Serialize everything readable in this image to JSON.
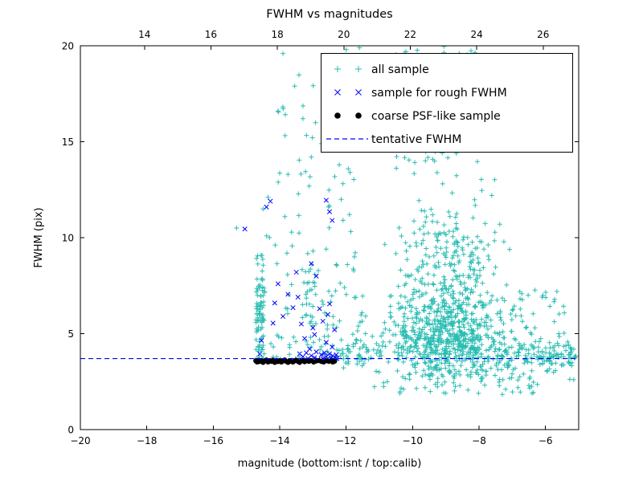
{
  "chart_data": {
    "type": "scatter",
    "title": "FWHM vs magnitudes",
    "xlabel": "magnitude (bottom:isnt / top:calib)",
    "ylabel": "FWHM (pix)",
    "xlim": [
      -20,
      -5
    ],
    "ylim": [
      0,
      20
    ],
    "x_ticks": [
      -20,
      -18,
      -16,
      -14,
      -12,
      -10,
      -8,
      -6
    ],
    "y_ticks": [
      0,
      5,
      10,
      15,
      20
    ],
    "top_axis": {
      "lim": [
        12.07,
        27.07
      ],
      "ticks": [
        14,
        16,
        18,
        20,
        22,
        24,
        26
      ]
    },
    "grid": false,
    "legend_position": "upper right",
    "colors": {
      "all_sample": "#2abdb2",
      "rough_fwhm": "#0000ff",
      "psf_sample": "#000000",
      "tentative_line": "#0000ff",
      "axes": "#000000",
      "background": "#ffffff"
    },
    "tentative_fwhm": 3.7,
    "series": [
      {
        "name": "all sample",
        "marker": "plus",
        "color": "#2abdb2",
        "seed": 20240601,
        "clusters": [
          {
            "n": 80,
            "x": {
              "min": -14.72,
              "max": -14.45
            },
            "y": {
              "min": 3.4,
              "max": 7.6
            }
          },
          {
            "n": 12,
            "x": {
              "min": -14.7,
              "max": -14.48
            },
            "y": {
              "min": 7.6,
              "max": 9.2
            }
          },
          {
            "n": 25,
            "x": {
              "min": -14.4,
              "max": -12.4
            },
            "y": {
              "dist": "normal",
              "mean": 4.1,
              "sd": 0.4,
              "min": 3.3,
              "max": 5.2
            }
          },
          {
            "n": 28,
            "x": {
              "min": -13.35,
              "max": -12.85
            },
            "y": {
              "min": 5.5,
              "max": 9.5
            }
          },
          {
            "n": 60,
            "x": {
              "min": -14.4,
              "max": -11.7
            },
            "y": {
              "min": 4.5,
              "max": 13.5
            }
          },
          {
            "n": 18,
            "x": {
              "min": -14.3,
              "max": -11.9
            },
            "y": {
              "min": 13.5,
              "max": 19.5
            }
          },
          {
            "n": 650,
            "x": {
              "dist": "normal",
              "mean": -8.9,
              "sd": 0.95,
              "min": -11,
              "max": -6.3
            },
            "y": {
              "dist": "normal",
              "mean": 4.7,
              "sd": 1.1,
              "min": 2.3,
              "max": 7.5
            }
          },
          {
            "n": 260,
            "x": {
              "dist": "normal",
              "mean": -9.0,
              "sd": 0.85,
              "min": -10.9,
              "max": -6.9
            },
            "y": {
              "dist": "normal",
              "mean": 8.0,
              "sd": 2.0,
              "min": 6.0,
              "max": 14.0
            }
          },
          {
            "n": 55,
            "x": {
              "dist": "normal",
              "mean": -9.3,
              "sd": 0.9,
              "min": -11,
              "max": -7.2
            },
            "y": {
              "min": 13,
              "max": 17
            }
          },
          {
            "n": 22,
            "x": {
              "min": -10.6,
              "max": -7.6
            },
            "y": {
              "min": 17,
              "max": 20
            }
          },
          {
            "n": 150,
            "x": {
              "min": -7.6,
              "max": -5.05
            },
            "y": {
              "dist": "normal",
              "mean": 3.85,
              "sd": 0.5,
              "min": 2.4,
              "max": 5.2
            }
          },
          {
            "n": 30,
            "x": {
              "min": -7.5,
              "max": -5.3
            },
            "y": {
              "min": 5.0,
              "max": 7.5
            }
          },
          {
            "n": 55,
            "x": {
              "min": -11.2,
              "max": -6.2
            },
            "y": {
              "min": 1.8,
              "max": 3.1
            }
          },
          {
            "n": 35,
            "x": {
              "min": -12.8,
              "max": -11.2
            },
            "y": {
              "min": 3.3,
              "max": 7.0
            }
          },
          {
            "n": 45,
            "x": {
              "min": -12.3,
              "max": -10.8
            },
            "y": {
              "dist": "normal",
              "mean": 4.0,
              "sd": 0.35,
              "min": 3.2,
              "max": 5.0
            }
          }
        ],
        "points": [
          [
            -15.3,
            10.5
          ],
          [
            -13.9,
            19.6
          ],
          [
            -13.55,
            17.9
          ],
          [
            -14.05,
            16.6
          ],
          [
            -13.3,
            16.2
          ],
          [
            -12.75,
            14.9
          ],
          [
            -13.05,
            14.2
          ],
          [
            -14.35,
            12.1
          ],
          [
            -14.5,
            11.5
          ],
          [
            -12.15,
            12.0
          ],
          [
            -11.9,
            11.2
          ],
          [
            -12.0,
            19.8
          ],
          [
            -11.6,
            19.9
          ],
          [
            -10.2,
            19.7
          ],
          [
            -9.9,
            19.3
          ],
          [
            -8.6,
            19.6
          ],
          [
            -12.35,
            18.1
          ],
          [
            -11.0,
            17.9
          ],
          [
            -10.4,
            16.6
          ],
          [
            -8.9,
            16.8
          ],
          [
            -7.8,
            15.9
          ],
          [
            -12.6,
            9.4
          ],
          [
            -6.1,
            6.9
          ],
          [
            -5.6,
            5.0
          ],
          [
            -5.3,
            4.4
          ],
          [
            -5.15,
            2.6
          ],
          [
            -6.5,
            2.3
          ],
          [
            -9.0,
            1.9
          ],
          [
            -7.2,
            2.1
          ],
          [
            -13.75,
            13.3
          ],
          [
            -12.3,
            8.6
          ],
          [
            -12.05,
            7.4
          ],
          [
            -11.75,
            9.0
          ]
        ]
      },
      {
        "name": "sample for rough FWHM",
        "marker": "x",
        "color": "#0000ff",
        "points": [
          [
            -15.05,
            10.45
          ],
          [
            -14.4,
            11.6
          ],
          [
            -14.28,
            11.9
          ],
          [
            -12.6,
            11.95
          ],
          [
            -12.5,
            11.35
          ],
          [
            -12.42,
            10.9
          ],
          [
            -13.05,
            8.65
          ],
          [
            -13.5,
            8.2
          ],
          [
            -12.9,
            8.0
          ],
          [
            -14.05,
            7.6
          ],
          [
            -13.75,
            7.05
          ],
          [
            -14.15,
            6.6
          ],
          [
            -13.6,
            6.35
          ],
          [
            -12.8,
            6.3
          ],
          [
            -12.55,
            6.0
          ],
          [
            -12.7,
            5.65
          ],
          [
            -13.9,
            5.9
          ],
          [
            -14.2,
            5.55
          ],
          [
            -13.35,
            5.5
          ],
          [
            -13.0,
            5.3
          ],
          [
            -12.95,
            4.95
          ],
          [
            -13.25,
            4.75
          ],
          [
            -12.6,
            4.55
          ],
          [
            -14.55,
            4.65
          ],
          [
            -14.6,
            3.95
          ],
          [
            -12.42,
            4.3
          ],
          [
            -13.1,
            4.2
          ],
          [
            -12.5,
            6.55
          ],
          [
            -13.45,
            6.9
          ],
          [
            -12.35,
            5.2
          ],
          [
            -13.4,
            3.95
          ],
          [
            -13.3,
            3.8
          ],
          [
            -13.2,
            4.0
          ],
          [
            -13.15,
            3.7
          ],
          [
            -13.05,
            3.85
          ],
          [
            -12.95,
            3.75
          ],
          [
            -12.9,
            4.05
          ],
          [
            -12.85,
            3.65
          ],
          [
            -12.75,
            3.9
          ],
          [
            -12.7,
            3.7
          ],
          [
            -12.65,
            4.0
          ],
          [
            -12.6,
            3.8
          ],
          [
            -12.55,
            3.7
          ],
          [
            -12.5,
            3.95
          ],
          [
            -12.45,
            3.75
          ],
          [
            -12.4,
            3.85
          ],
          [
            -12.38,
            3.65
          ],
          [
            -12.33,
            3.75
          ],
          [
            -12.3,
            3.9
          ],
          [
            -12.28,
            3.7
          ]
        ]
      },
      {
        "name": "coarse PSF-like sample",
        "marker": "dot",
        "color": "#000000",
        "points": [
          [
            -14.72,
            3.58
          ],
          [
            -14.68,
            3.52
          ],
          [
            -14.64,
            3.62
          ],
          [
            -14.6,
            3.55
          ],
          [
            -14.55,
            3.6
          ],
          [
            -14.5,
            3.5
          ],
          [
            -14.45,
            3.57
          ],
          [
            -14.4,
            3.63
          ],
          [
            -14.35,
            3.52
          ],
          [
            -14.3,
            3.6
          ],
          [
            -14.25,
            3.55
          ],
          [
            -14.2,
            3.62
          ],
          [
            -14.15,
            3.5
          ],
          [
            -14.1,
            3.58
          ],
          [
            -14.05,
            3.54
          ],
          [
            -14.0,
            3.6
          ],
          [
            -13.95,
            3.52
          ],
          [
            -13.9,
            3.57
          ],
          [
            -13.85,
            3.63
          ],
          [
            -13.8,
            3.55
          ],
          [
            -13.75,
            3.5
          ],
          [
            -13.7,
            3.6
          ],
          [
            -13.65,
            3.55
          ],
          [
            -13.6,
            3.52
          ],
          [
            -13.55,
            3.58
          ],
          [
            -13.5,
            3.62
          ],
          [
            -13.45,
            3.55
          ],
          [
            -13.4,
            3.5
          ],
          [
            -13.35,
            3.57
          ],
          [
            -13.3,
            3.6
          ],
          [
            -13.25,
            3.53
          ],
          [
            -13.2,
            3.58
          ],
          [
            -13.12,
            3.55
          ],
          [
            -13.05,
            3.6
          ],
          [
            -12.98,
            3.52
          ],
          [
            -12.9,
            3.57
          ],
          [
            -12.82,
            3.6
          ],
          [
            -12.75,
            3.55
          ],
          [
            -12.68,
            3.52
          ],
          [
            -12.6,
            3.58
          ],
          [
            -12.52,
            3.55
          ],
          [
            -12.45,
            3.6
          ],
          [
            -12.4,
            3.52
          ],
          [
            -12.35,
            3.56
          ]
        ]
      },
      {
        "name": "tentative FWHM",
        "type": "hline",
        "y": 3.7,
        "color": "#0000ff",
        "style": "dashed"
      }
    ]
  }
}
